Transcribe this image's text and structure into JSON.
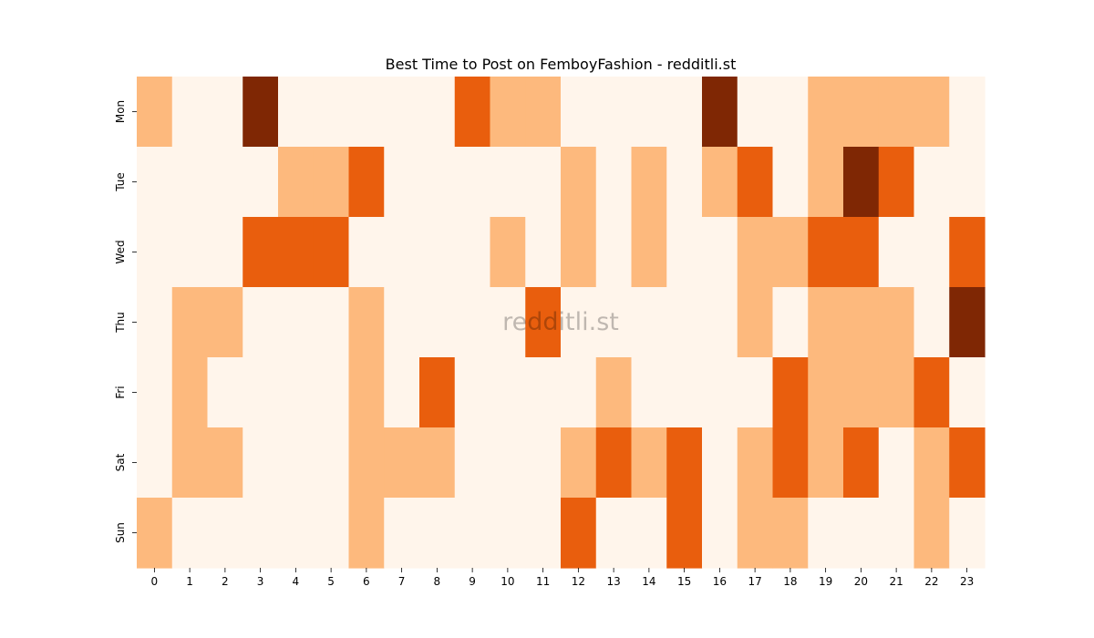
{
  "chart_data": {
    "type": "heatmap",
    "title": "Best Time to Post on FemboyFashion - redditli.st",
    "watermark": "redditli.st",
    "xlabel": "",
    "ylabel": "",
    "x": [
      0,
      1,
      2,
      3,
      4,
      5,
      6,
      7,
      8,
      9,
      10,
      11,
      12,
      13,
      14,
      15,
      16,
      17,
      18,
      19,
      20,
      21,
      22,
      23
    ],
    "y": [
      "Mon",
      "Tue",
      "Wed",
      "Thu",
      "Fri",
      "Sat",
      "Sun"
    ],
    "values": [
      [
        1,
        0,
        0,
        3,
        0,
        0,
        0,
        0,
        0,
        2,
        1,
        1,
        0,
        0,
        0,
        0,
        3,
        0,
        0,
        1,
        1,
        1,
        1,
        0
      ],
      [
        0,
        0,
        0,
        0,
        1,
        1,
        2,
        0,
        0,
        0,
        0,
        0,
        1,
        0,
        1,
        0,
        1,
        2,
        0,
        1,
        3,
        2,
        0,
        0
      ],
      [
        0,
        0,
        0,
        2,
        2,
        2,
        0,
        0,
        0,
        0,
        1,
        0,
        1,
        0,
        1,
        0,
        0,
        1,
        1,
        2,
        2,
        0,
        0,
        2
      ],
      [
        0,
        1,
        1,
        0,
        0,
        0,
        1,
        0,
        0,
        0,
        0,
        2,
        0,
        0,
        0,
        0,
        0,
        1,
        0,
        1,
        1,
        1,
        0,
        3
      ],
      [
        0,
        1,
        0,
        0,
        0,
        0,
        1,
        0,
        2,
        0,
        0,
        0,
        0,
        1,
        0,
        0,
        0,
        0,
        2,
        1,
        1,
        1,
        2,
        0
      ],
      [
        0,
        1,
        1,
        0,
        0,
        0,
        1,
        1,
        1,
        0,
        0,
        0,
        1,
        2,
        1,
        2,
        0,
        1,
        2,
        1,
        2,
        0,
        1,
        2
      ],
      [
        1,
        0,
        0,
        0,
        0,
        0,
        1,
        0,
        0,
        0,
        0,
        0,
        2,
        0,
        0,
        2,
        0,
        1,
        1,
        0,
        0,
        0,
        1,
        0
      ]
    ],
    "colors": {
      "levels": [
        "#fff5eb",
        "#fdb97d",
        "#e95e0d",
        "#7f2704"
      ]
    },
    "legend": "none",
    "grid": false
  }
}
